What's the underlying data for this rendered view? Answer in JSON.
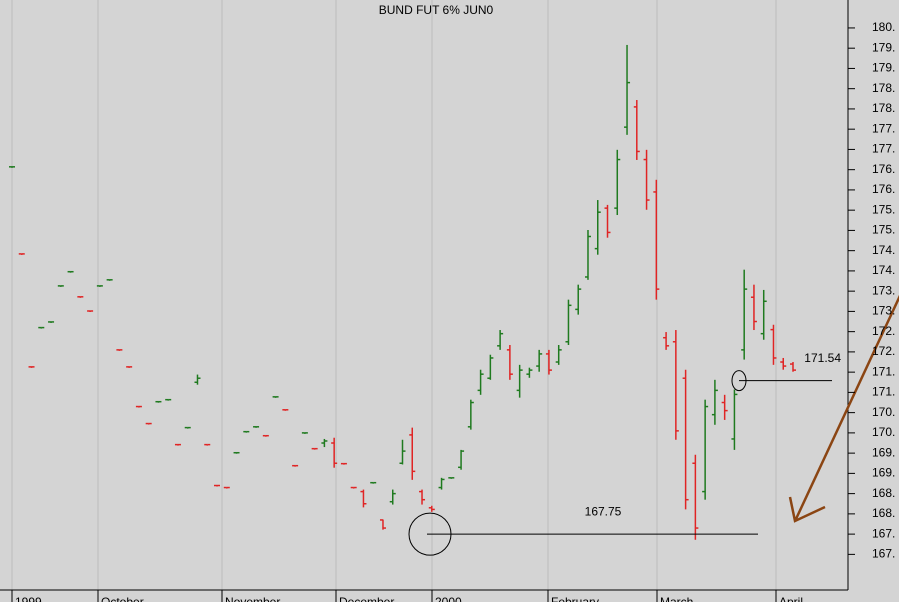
{
  "chart_data": {
    "type": "ohlc",
    "title": "BUND FUT 6% JUN0",
    "up_color": "#1f7a1f",
    "down_color": "#e02424",
    "ylim": [
      166.37,
      180.94
    ],
    "yticks": [
      {
        "value": 180.25,
        "label": "180."
      },
      {
        "value": 179.75,
        "label": "179."
      },
      {
        "value": 179.25,
        "label": "179."
      },
      {
        "value": 178.75,
        "label": "178."
      },
      {
        "value": 178.25,
        "label": "178."
      },
      {
        "value": 177.75,
        "label": "177."
      },
      {
        "value": 177.25,
        "label": "177."
      },
      {
        "value": 176.75,
        "label": "176."
      },
      {
        "value": 176.25,
        "label": "176."
      },
      {
        "value": 175.75,
        "label": "175."
      },
      {
        "value": 175.25,
        "label": "175."
      },
      {
        "value": 174.75,
        "label": "174."
      },
      {
        "value": 174.25,
        "label": "174."
      },
      {
        "value": 173.75,
        "label": "173."
      },
      {
        "value": 173.25,
        "label": "173."
      },
      {
        "value": 172.75,
        "label": "172."
      },
      {
        "value": 172.25,
        "label": "172."
      },
      {
        "value": 171.75,
        "label": "171."
      },
      {
        "value": 171.25,
        "label": "171."
      },
      {
        "value": 170.75,
        "label": "170."
      },
      {
        "value": 170.25,
        "label": "170."
      },
      {
        "value": 169.75,
        "label": "169."
      },
      {
        "value": 169.25,
        "label": "169."
      },
      {
        "value": 168.75,
        "label": "168."
      },
      {
        "value": 168.25,
        "label": "168."
      },
      {
        "value": 167.75,
        "label": "167."
      },
      {
        "value": 167.25,
        "label": "167."
      }
    ],
    "x_labels": [
      "1999",
      "October",
      "November",
      "December",
      "2000",
      "February",
      "March",
      "April"
    ],
    "open": [
      176.82,
      174.67,
      171.88,
      172.85,
      172.99,
      173.88,
      174.23,
      173.61,
      173.26,
      173.88,
      174.03,
      172.3,
      171.88,
      170.9,
      170.48,
      171.02,
      171.07,
      169.96,
      170.38,
      171.5,
      169.96,
      168.95,
      168.9,
      169.76,
      170.28,
      170.4,
      170.18,
      171.14,
      170.82,
      169.44,
      170.25,
      169.86,
      170.0,
      170.0,
      169.49,
      168.9,
      168.8,
      169.02,
      168.1,
      168.55,
      169.5,
      170.2,
      168.8,
      168.4,
      168.9,
      169.14,
      169.4,
      170.4,
      171.3,
      171.6,
      172.4,
      172.3,
      171.3,
      171.7,
      171.9,
      172.2,
      172.0,
      172.5,
      173.3,
      174.1,
      174.8,
      175.8,
      175.8,
      177.8,
      178.3,
      177.0,
      176.2,
      172.6,
      172.5,
      171.6,
      169.5,
      168.8,
      170.7,
      171.0,
      170.1,
      172.3,
      173.6,
      172.7,
      172.8,
      172.0,
      171.95
    ],
    "high": [
      176.82,
      174.67,
      171.88,
      172.85,
      172.99,
      173.88,
      174.23,
      173.61,
      173.26,
      173.88,
      174.03,
      172.3,
      171.88,
      170.9,
      170.48,
      171.02,
      171.07,
      169.96,
      170.38,
      171.69,
      169.96,
      168.95,
      168.9,
      169.76,
      170.28,
      170.4,
      170.18,
      171.14,
      170.82,
      169.44,
      170.25,
      169.86,
      170.1,
      170.13,
      169.49,
      168.9,
      168.85,
      169.02,
      168.11,
      168.85,
      170.08,
      170.38,
      168.85,
      168.45,
      169.14,
      169.14,
      169.83,
      171.07,
      171.81,
      172.18,
      172.79,
      172.42,
      171.93,
      171.86,
      172.3,
      172.3,
      172.42,
      173.54,
      173.91,
      175.26,
      176.0,
      175.88,
      177.24,
      179.83,
      178.47,
      177.24,
      176.5,
      172.74,
      172.79,
      171.81,
      169.71,
      171.07,
      171.56,
      171.19,
      171.32,
      174.28,
      173.91,
      173.78,
      172.92,
      172.1,
      172.0
    ],
    "low": [
      176.82,
      174.67,
      171.88,
      172.85,
      172.99,
      173.88,
      174.23,
      173.61,
      173.26,
      173.88,
      174.03,
      172.3,
      171.88,
      170.9,
      170.48,
      171.02,
      171.07,
      169.96,
      170.38,
      171.44,
      169.96,
      168.95,
      168.9,
      169.76,
      170.28,
      170.4,
      170.18,
      171.14,
      170.82,
      169.44,
      170.25,
      169.86,
      169.9,
      169.39,
      169.49,
      168.9,
      168.41,
      169.02,
      167.86,
      168.48,
      169.47,
      169.09,
      168.48,
      168.3,
      168.85,
      169.14,
      169.34,
      170.33,
      171.19,
      171.56,
      172.3,
      171.56,
      171.12,
      171.61,
      171.76,
      171.69,
      171.93,
      172.42,
      173.17,
      174.03,
      174.65,
      175.07,
      175.63,
      177.61,
      176.99,
      175.76,
      173.54,
      172.3,
      170.08,
      168.36,
      167.61,
      168.6,
      170.45,
      170.57,
      169.83,
      172.06,
      172.79,
      172.55,
      171.93,
      171.81,
      171.76
    ],
    "close": [
      176.82,
      174.67,
      171.88,
      172.85,
      172.99,
      173.88,
      174.23,
      173.61,
      173.26,
      173.88,
      174.03,
      172.3,
      171.88,
      170.9,
      170.48,
      171.02,
      171.07,
      169.96,
      170.38,
      171.6,
      169.96,
      168.95,
      168.9,
      169.76,
      170.28,
      170.4,
      170.18,
      171.14,
      170.82,
      169.44,
      170.25,
      169.86,
      170.05,
      169.5,
      169.49,
      168.9,
      168.5,
      169.02,
      167.9,
      168.75,
      169.8,
      169.3,
      168.6,
      168.36,
      169.1,
      169.14,
      169.8,
      171.0,
      171.7,
      172.1,
      172.7,
      171.7,
      171.8,
      171.8,
      172.2,
      171.8,
      172.3,
      173.4,
      173.8,
      175.1,
      175.7,
      175.2,
      177.0,
      178.9,
      177.2,
      176.0,
      173.8,
      172.4,
      170.3,
      168.6,
      167.9,
      170.9,
      171.3,
      170.8,
      171.2,
      173.8,
      173.0,
      173.5,
      172.1,
      171.9,
      171.8
    ],
    "annotations": [
      {
        "label": "167.75",
        "value": 167.75
      },
      {
        "label": "171.54",
        "value": 171.54
      }
    ]
  }
}
